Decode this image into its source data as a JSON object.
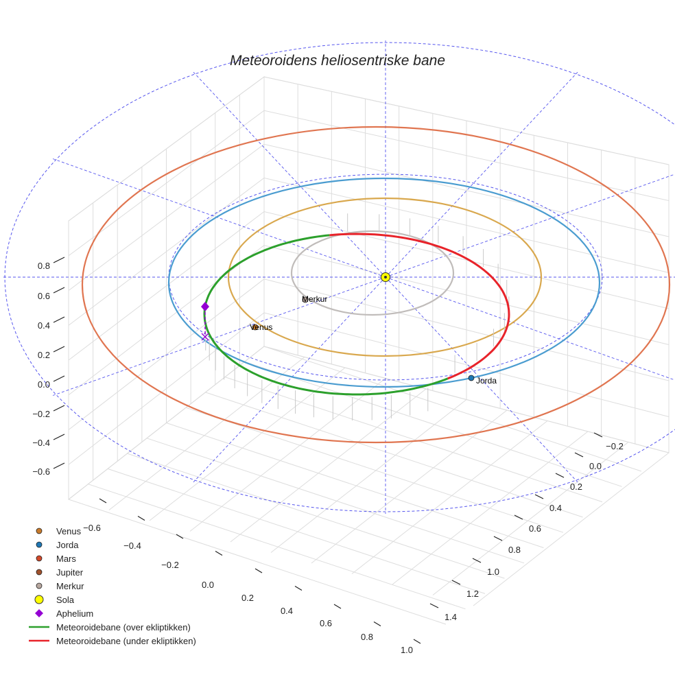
{
  "chart_data": {
    "type": "line3d",
    "title": "Meteoroidens heliosentriske bane",
    "axes": {
      "x_ticks": [
        "−0.6",
        "−0.4",
        "−0.2",
        "0.0",
        "0.2",
        "0.4",
        "0.6",
        "0.8",
        "1.0"
      ],
      "y_ticks": [
        "−0.2",
        "0.0",
        "0.2",
        "0.4",
        "0.6",
        "0.8",
        "1.0",
        "1.2",
        "1.4"
      ],
      "z_ticks": [
        "0.8",
        "0.6",
        "0.4",
        "0.2",
        "0.0",
        "−0.2",
        "−0.4",
        "−0.6"
      ]
    },
    "legend": [
      {
        "label": "Venus",
        "kind": "dot",
        "color": "#c87b2c"
      },
      {
        "label": "Jorda",
        "kind": "dot",
        "color": "#1f77b4"
      },
      {
        "label": "Mars",
        "kind": "dot",
        "color": "#d2492a"
      },
      {
        "label": "Jupiter",
        "kind": "dot",
        "color": "#a0522d"
      },
      {
        "label": "Merkur",
        "kind": "dot",
        "color": "#b8a8a0"
      },
      {
        "label": "Sola",
        "kind": "sun",
        "color": "#ffff00"
      },
      {
        "label": "Aphelium",
        "kind": "diamond",
        "color": "#9400d3"
      },
      {
        "label": "Meteoroidebane (over ekliptikken)",
        "kind": "line",
        "color": "#2ca02c"
      },
      {
        "label": "Meteoroidebane (under ekliptikken)",
        "kind": "line",
        "color": "#e8232a"
      }
    ],
    "orbits": [
      {
        "name": "Merkur",
        "color": "#c0bcba"
      },
      {
        "name": "Venus",
        "color": "#d9a84e"
      },
      {
        "name": "Jorda",
        "color": "#4a9cd0"
      },
      {
        "name": "Mars",
        "color": "#e07550"
      }
    ],
    "point_labels": [
      "Merkur",
      "Venus",
      "Jorda"
    ],
    "colors": {
      "ecliptic_grid": "#5555ee",
      "aphelion": "#9400d3"
    }
  }
}
